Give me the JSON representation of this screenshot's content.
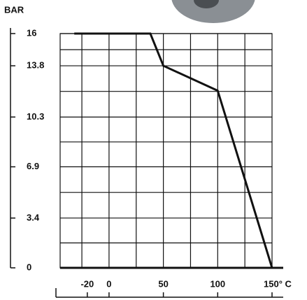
{
  "chart_data": {
    "type": "line",
    "y_label": "BAR",
    "x": [
      -32,
      38,
      50,
      100,
      150
    ],
    "series": [
      {
        "color": "#111111",
        "values": [
          16,
          16,
          13.8,
          12.1,
          0
        ]
      }
    ],
    "xlim": [
      -45,
      150
    ],
    "xticks": [
      -20,
      0,
      50,
      100,
      {
        "value": 150,
        "label": "150° C"
      }
    ],
    "ylim": [
      0,
      16
    ],
    "yticks": [
      0,
      3.4,
      6.9,
      10.3,
      13.8,
      16
    ],
    "grid": true
  }
}
